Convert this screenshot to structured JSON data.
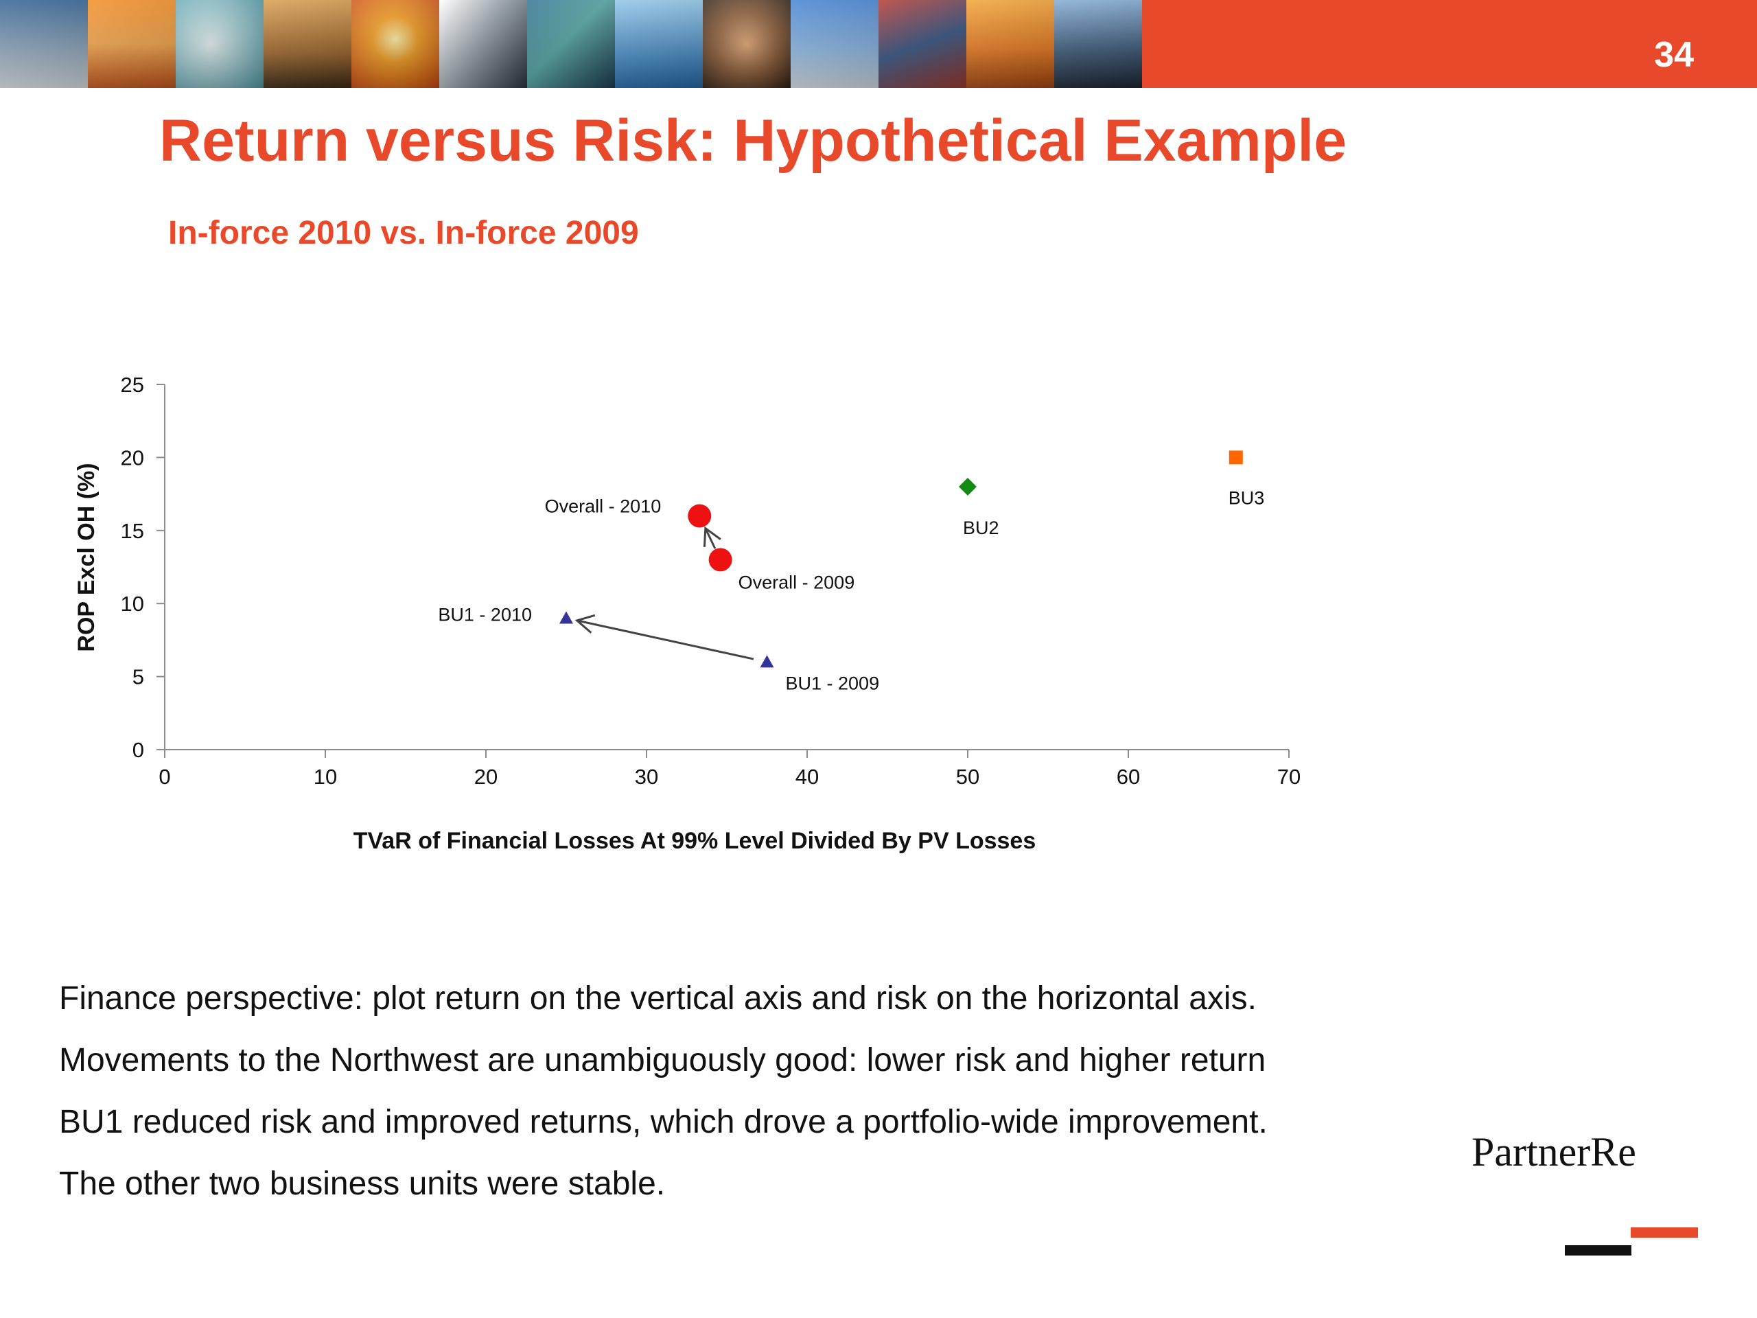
{
  "slide": {
    "page_number": "34",
    "title": "Return versus Risk: Hypothetical Example",
    "subtitle": "In-force 2010 vs. In-force 2009",
    "body_lines": [
      "Finance perspective: plot return on the vertical axis and risk on the horizontal axis.",
      "Movements to the Northwest are unambiguously good: lower risk and higher return",
      "BU1 reduced risk and improved returns, which drove a portfolio-wide improvement.",
      "The other two business units were stable."
    ],
    "logo": "PartnerRe"
  },
  "colors": {
    "accent": "#e8492b",
    "overall": "#ee1111",
    "bu1": "#333399",
    "bu2": "#138a13",
    "bu3": "#ff6600",
    "arrow": "#444444"
  },
  "chart_data": {
    "type": "scatter",
    "xlabel": "TVaR of Financial Losses At 99% Level Divided By PV Losses",
    "ylabel": "ROP Excl OH (%)",
    "xlim": [
      0,
      70
    ],
    "ylim": [
      0,
      25
    ],
    "xticks": [
      0,
      10,
      20,
      30,
      40,
      50,
      60,
      70
    ],
    "yticks": [
      0,
      5,
      10,
      15,
      20,
      25
    ],
    "grid": false,
    "points": [
      {
        "label": "Overall - 2010",
        "x": 33.3,
        "y": 16,
        "marker": "circle",
        "color": "#ee1111"
      },
      {
        "label": "Overall - 2009",
        "x": 34.6,
        "y": 13,
        "marker": "circle",
        "color": "#ee1111"
      },
      {
        "label": "BU1 - 2010",
        "x": 25,
        "y": 9,
        "marker": "triangle",
        "color": "#333399"
      },
      {
        "label": "BU1 - 2009",
        "x": 37.5,
        "y": 6,
        "marker": "triangle",
        "color": "#333399"
      },
      {
        "label": "BU2",
        "x": 50,
        "y": 18,
        "marker": "diamond",
        "color": "#138a13"
      },
      {
        "label": "BU3",
        "x": 66.7,
        "y": 20,
        "marker": "square",
        "color": "#ff6600"
      }
    ],
    "arrows": [
      {
        "from": "Overall - 2009",
        "to": "Overall - 2010"
      },
      {
        "from": "BU1 - 2009",
        "to": "BU1 - 2010"
      }
    ]
  }
}
